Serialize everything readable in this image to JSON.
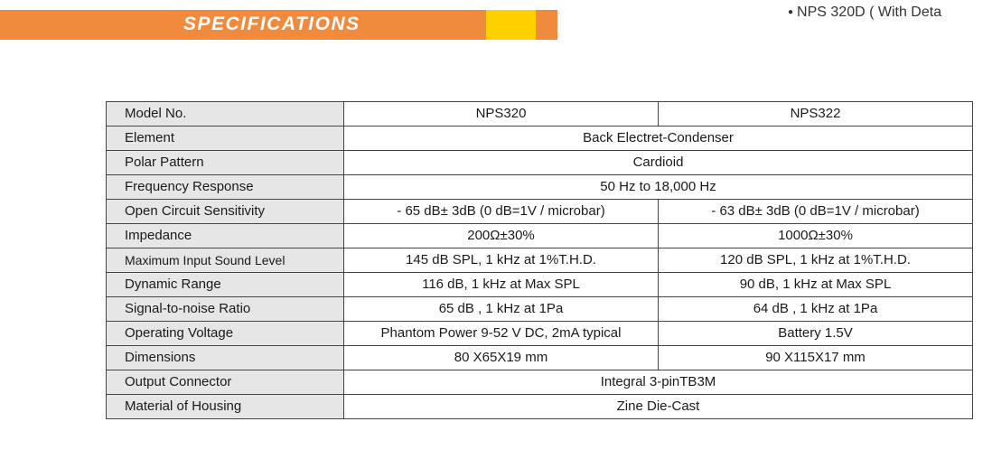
{
  "header": {
    "title": "SPECIFICATIONS",
    "model_note": "NPS 320D ( With Deta",
    "colors": {
      "banner": "#f08a3c",
      "accent": "#ffd000"
    }
  },
  "table": {
    "rows": [
      {
        "label": "Model No.",
        "nps320": "NPS320",
        "nps322": "NPS322"
      },
      {
        "label": "Element",
        "both": "Back Electret-Condenser"
      },
      {
        "label": "Polar Pattern",
        "both": "Cardioid"
      },
      {
        "label": "Frequency Response",
        "both": "50 Hz to 18,000 Hz"
      },
      {
        "label": "Open Circuit Sensitivity",
        "nps320": "- 65 dB± 3dB (0 dB=1V / microbar)",
        "nps322": "- 63 dB± 3dB (0 dB=1V / microbar)"
      },
      {
        "label": "Impedance",
        "nps320": "200Ω±30%",
        "nps322": "1000Ω±30%"
      },
      {
        "label": "Maximum Input Sound Level",
        "nps320": "145 dB SPL, 1 kHz at 1%T.H.D.",
        "nps322": "120 dB SPL, 1 kHz at 1%T.H.D."
      },
      {
        "label": "Dynamic Range",
        "nps320": "116 dB, 1 kHz at Max SPL",
        "nps322": "90 dB, 1 kHz at Max SPL"
      },
      {
        "label": "Signal-to-noise Ratio",
        "nps320": "65 dB , 1 kHz at 1Pa",
        "nps322": "64 dB , 1 kHz at 1Pa"
      },
      {
        "label": "Operating Voltage",
        "nps320": "Phantom Power 9-52 V DC, 2mA typical",
        "nps322": "Battery 1.5V"
      },
      {
        "label": "Dimensions",
        "nps320": "80 X65X19 mm",
        "nps322": "90 X115X17 mm"
      },
      {
        "label": "Output Connector",
        "both": "Integral 3-pinTB3M"
      },
      {
        "label": "Material of Housing",
        "both": "Zine Die-Cast"
      }
    ]
  }
}
